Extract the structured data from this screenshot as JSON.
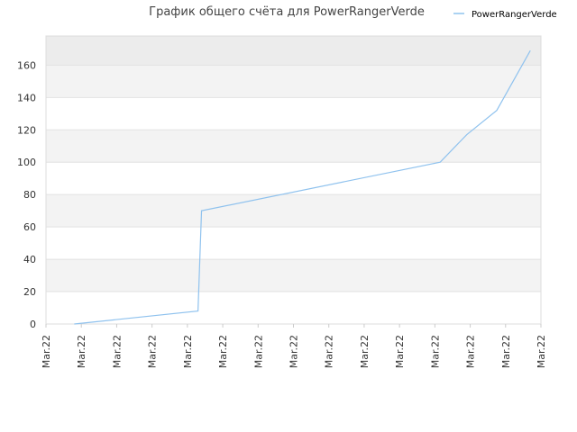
{
  "chart_data": {
    "type": "line",
    "title": "График общего счёта для PowerRangerVerde",
    "x": [
      0.8,
      4.3,
      4.4,
      11.15,
      11.9,
      12.75,
      13.7
    ],
    "series": [
      {
        "name": "PowerRangerVerde",
        "color": "#8fc2ee",
        "values": [
          0,
          8,
          70,
          100,
          117,
          132,
          169
        ]
      }
    ],
    "xlim": [
      0,
      14
    ],
    "xticks": [
      {
        "value": 0,
        "label": "Mar.22"
      },
      {
        "value": 1,
        "label": "Mar.22"
      },
      {
        "value": 2,
        "label": "Mar.22"
      },
      {
        "value": 3,
        "label": "Mar.22"
      },
      {
        "value": 4,
        "label": "Mar.22"
      },
      {
        "value": 5,
        "label": "Mar.22"
      },
      {
        "value": 6,
        "label": "Mar.22"
      },
      {
        "value": 7,
        "label": "Mar.22"
      },
      {
        "value": 8,
        "label": "Mar.22"
      },
      {
        "value": 9,
        "label": "Mar.22"
      },
      {
        "value": 10,
        "label": "Mar.22"
      },
      {
        "value": 11,
        "label": "Mar.22"
      },
      {
        "value": 12,
        "label": "Mar.22"
      },
      {
        "value": 13,
        "label": "Mar.22"
      },
      {
        "value": 14,
        "label": "Mar.22"
      }
    ],
    "ylim": [
      0,
      178
    ],
    "yticks": [
      0,
      20,
      40,
      60,
      80,
      100,
      120,
      140,
      160
    ],
    "grid": true,
    "legend": "top-right"
  }
}
